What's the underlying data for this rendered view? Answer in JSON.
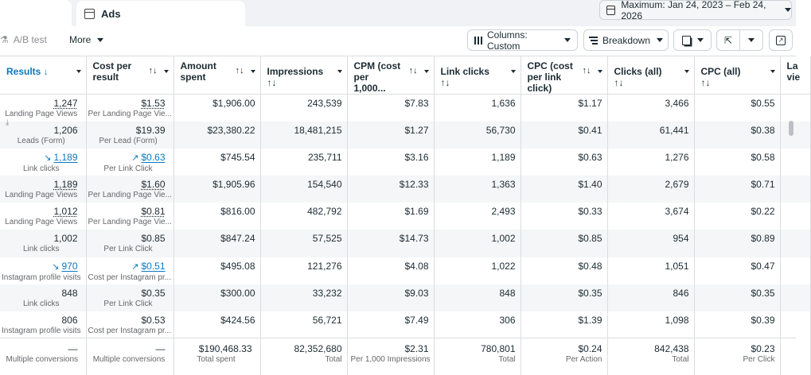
{
  "tab": {
    "title": "Ads"
  },
  "date_range": {
    "label": "Maximum: Jan 24, 2023 – Feb 24, 2026"
  },
  "toolbar": {
    "ab_test": "A/B test",
    "more": "More",
    "columns": "Columns: Custom",
    "breakdown": "Breakdown"
  },
  "headers": [
    {
      "label": "Results",
      "sort": "↓"
    },
    {
      "label": "Cost per result",
      "sort": "↑↓"
    },
    {
      "label": "Amount spent",
      "sort": "↑↓"
    },
    {
      "label": "Impressions",
      "sort": "↑↓"
    },
    {
      "label": "CPM (cost per 1,000...",
      "sort": "↑↓"
    },
    {
      "label": "Link clicks",
      "sort": "↑↓"
    },
    {
      "label": "CPC (cost per link click)",
      "sort": "↑↓"
    },
    {
      "label": "Clicks (all)",
      "sort": "↑↓"
    },
    {
      "label": "CPC (all)",
      "sort": "↑↓"
    },
    {
      "label": "La vie",
      "sort": ""
    }
  ],
  "rows": [
    {
      "results": "1,247",
      "results_sub": "Landing Page Views",
      "cpr": "$1.53",
      "cpr_sub": "Per Landing Page Vie...",
      "amount": "$1,906.00",
      "impressions": "243,539",
      "cpm": "$7.83",
      "link_clicks": "1,636",
      "cpc_link": "$1.17",
      "clicks_all": "3,466",
      "cpc_all": "$0.55"
    },
    {
      "results": "1,206",
      "results_sub": "Leads (Form)",
      "cpr": "$19.39",
      "cpr_sub": "Per Lead (Form)",
      "amount": "$23,380.22",
      "impressions": "18,481,215",
      "cpm": "$1.27",
      "link_clicks": "56,730",
      "cpc_link": "$0.41",
      "clicks_all": "61,441",
      "cpc_all": "$0.38"
    },
    {
      "results": "1,189",
      "results_sub": "Link clicks",
      "cpr": "$0.63",
      "cpr_sub": "Per Link Click",
      "amount": "$745.54",
      "impressions": "235,711",
      "cpm": "$3.16",
      "link_clicks": "1,189",
      "cpc_link": "$0.63",
      "clicks_all": "1,276",
      "cpc_all": "$0.58"
    },
    {
      "results": "1,189",
      "results_sub": "Landing Page Views",
      "cpr": "$1.60",
      "cpr_sub": "Per Landing Page Vie...",
      "amount": "$1,905.96",
      "impressions": "154,540",
      "cpm": "$12.33",
      "link_clicks": "1,363",
      "cpc_link": "$1.40",
      "clicks_all": "2,679",
      "cpc_all": "$0.71"
    },
    {
      "results": "1,012",
      "results_sub": "Landing Page Views",
      "cpr": "$0.81",
      "cpr_sub": "Per Landing Page Vie...",
      "amount": "$816.00",
      "impressions": "482,792",
      "cpm": "$1.69",
      "link_clicks": "2,493",
      "cpc_link": "$0.33",
      "clicks_all": "3,674",
      "cpc_all": "$0.22"
    },
    {
      "results": "1,002",
      "results_sub": "Link clicks",
      "cpr": "$0.85",
      "cpr_sub": "Per Link Click",
      "amount": "$847.24",
      "impressions": "57,525",
      "cpm": "$14.73",
      "link_clicks": "1,002",
      "cpc_link": "$0.85",
      "clicks_all": "954",
      "cpc_all": "$0.89"
    },
    {
      "results": "970",
      "results_sub": "Instagram profile visits",
      "cpr": "$0.51",
      "cpr_sub": "Cost per Instagram pr...",
      "amount": "$495.08",
      "impressions": "121,276",
      "cpm": "$4.08",
      "link_clicks": "1,022",
      "cpc_link": "$0.48",
      "clicks_all": "1,051",
      "cpc_all": "$0.47"
    },
    {
      "results": "848",
      "results_sub": "Link clicks",
      "cpr": "$0.35",
      "cpr_sub": "Per Link Click",
      "amount": "$300.00",
      "impressions": "33,232",
      "cpm": "$9.03",
      "link_clicks": "848",
      "cpc_link": "$0.35",
      "clicks_all": "846",
      "cpc_all": "$0.35"
    },
    {
      "results": "806",
      "results_sub": "Instagram profile visits",
      "cpr": "$0.53",
      "cpr_sub": "Cost per Instagram pr...",
      "amount": "$424.56",
      "impressions": "56,721",
      "cpm": "$7.49",
      "link_clicks": "306",
      "cpc_link": "$1.39",
      "clicks_all": "1,098",
      "cpc_all": "$0.39"
    }
  ],
  "totals": {
    "results": "—",
    "results_sub": "Multiple conversions",
    "cpr": "—",
    "cpr_sub": "Multiple conversions",
    "amount": "$190,468.33",
    "amount_sub": "Total spent",
    "impressions": "82,352,680",
    "impressions_sub": "Total",
    "cpm": "$2.31",
    "cpm_sub": "Per 1,000 Impressions",
    "link_clicks": "780,801",
    "link_clicks_sub": "Total",
    "cpc_link": "$0.24",
    "cpc_link_sub": "Per Action",
    "clicks_all": "842,438",
    "clicks_all_sub": "Total",
    "cpc_all": "$0.23",
    "cpc_all_sub": "Per Click"
  }
}
